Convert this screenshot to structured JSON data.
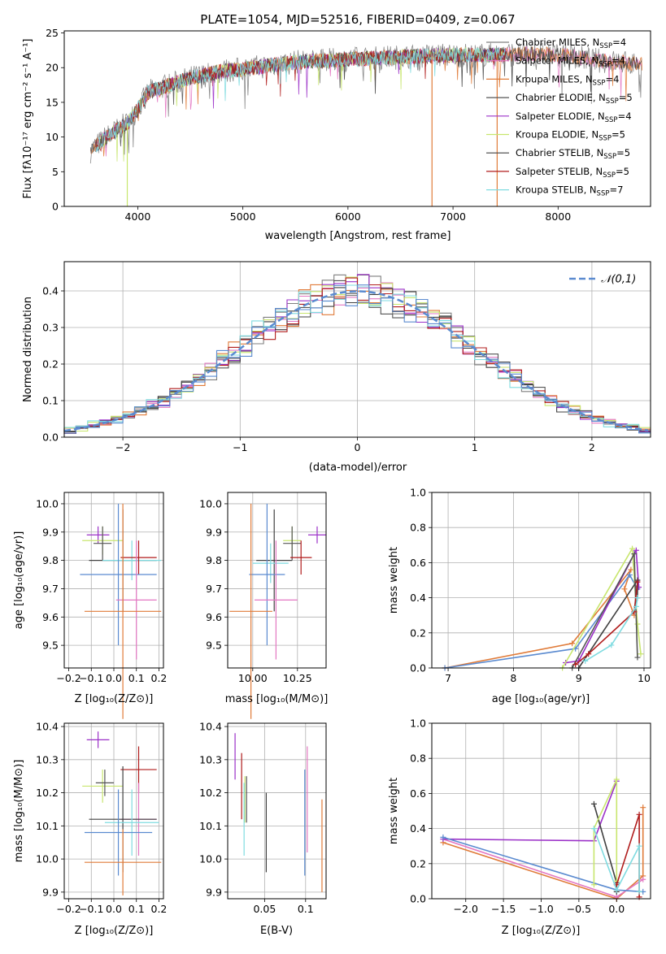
{
  "chart_data": [
    {
      "id": "spectrum",
      "type": "line",
      "title": "PLATE=1054, MJD=52516, FIBERID=0409, z=0.067",
      "xlabel": "wavelength [Angstrom, rest frame]",
      "ylabel": "Flux [fλ10⁻¹⁷ erg cm⁻² s⁻¹ A⁻¹]",
      "xlim": [
        3300,
        8880
      ],
      "ylim": [
        0,
        25.3
      ],
      "xticks": [
        4000,
        5000,
        6000,
        7000,
        8000
      ],
      "yticks": [
        0,
        5,
        10,
        15,
        20,
        25
      ],
      "grid": false,
      "legend_position": "right",
      "legend": [
        {
          "label": "Chabrier MILES, N_SSP=4",
          "color": "#7f7f7f"
        },
        {
          "label": "Salpeter MILES, N_SSP=4",
          "color": "#e377c2"
        },
        {
          "label": "Kroupa MILES, N_SSP=4",
          "color": "#e07b39"
        },
        {
          "label": "Chabrier ELODIE, N_SSP=5",
          "color": "#555555"
        },
        {
          "label": "Salpeter ELODIE, N_SSP=4",
          "color": "#9b30c8"
        },
        {
          "label": "Kroupa ELODIE, N_SSP=5",
          "color": "#c8e66e"
        },
        {
          "label": "Chabrier STELIB, N_SSP=5",
          "color": "#404040"
        },
        {
          "label": "Salpeter STELIB, N_SSP=5",
          "color": "#b01c1c"
        },
        {
          "label": "Kroupa STELIB, N_SSP=7",
          "color": "#7fdbe0"
        }
      ],
      "continuum": {
        "x": [
          3550,
          3700,
          3900,
          4000,
          4100,
          4300,
          4500,
          4800,
          5000,
          5200,
          5500,
          5800,
          6000,
          6300,
          6600,
          6900,
          7200,
          7500,
          7800,
          8100,
          8400,
          8800
        ],
        "y": [
          8,
          10,
          12,
          14,
          16.5,
          17.5,
          18.5,
          19.5,
          19.8,
          20.2,
          20.8,
          21,
          21.2,
          21.4,
          21.6,
          21.8,
          21.8,
          21.9,
          22,
          21.7,
          21,
          20.5
        ]
      },
      "spikes": [
        {
          "x": 3900,
          "y": 0,
          "color": "#c8e66e"
        },
        {
          "x": 6800,
          "y": 0,
          "color": "#e07b39"
        },
        {
          "x": 7420,
          "y": 0,
          "color": "#e07b39"
        }
      ]
    },
    {
      "id": "residuals",
      "type": "step",
      "xlabel": "(data-model)/error",
      "ylabel": "Normed distribution",
      "xlim": [
        -2.5,
        2.5
      ],
      "ylim": [
        0,
        0.48
      ],
      "xticks": [
        -2,
        -1,
        0,
        1,
        2
      ],
      "yticks": [
        0.0,
        0.1,
        0.2,
        0.3,
        0.4
      ],
      "grid": true,
      "legend_position": "top-right",
      "legend": [
        {
          "label": "𝒩(0,1)",
          "color": "#5b8bd0"
        }
      ],
      "bin_width": 0.1
    },
    {
      "id": "age-vs-Z",
      "type": "errorbar",
      "xlabel": "Z [log₁₀(Z/Z⊙)]",
      "ylabel": "age  [log₁₀(age/yr)]",
      "xlim": [
        -0.22,
        0.22
      ],
      "ylim": [
        9.42,
        10.04
      ],
      "xticks": [
        -0.2,
        -0.1,
        0.0,
        0.1,
        0.2
      ],
      "yticks": [
        9.5,
        9.6,
        9.7,
        9.8,
        9.9,
        10.0
      ],
      "points": [
        {
          "x": -0.07,
          "y": 9.89,
          "xerr": 0.05,
          "yerr": 0.03,
          "color": "#9b30c8"
        },
        {
          "x": -0.05,
          "y": 9.87,
          "xerr": 0.09,
          "yerr": 0.05,
          "color": "#c8e66e"
        },
        {
          "x": -0.05,
          "y": 9.86,
          "xerr": 0.04,
          "yerr": 0.06,
          "color": "#555555"
        },
        {
          "x": 0.04,
          "y": 9.8,
          "xerr": 0.15,
          "yerr": 0.18,
          "color": "#404040"
        },
        {
          "x": 0.08,
          "y": 9.8,
          "xerr": 0.13,
          "yerr": 0.07,
          "color": "#7fdbe0"
        },
        {
          "x": 0.11,
          "y": 9.81,
          "xerr": 0.08,
          "yerr": 0.06,
          "color": "#b01c1c"
        },
        {
          "x": 0.02,
          "y": 9.75,
          "xerr": 0.17,
          "yerr": 0.25,
          "color": "#5b8bd0"
        },
        {
          "x": 0.1,
          "y": 9.66,
          "xerr": 0.09,
          "yerr": 0.21,
          "color": "#e377c2"
        },
        {
          "x": 0.04,
          "y": 9.62,
          "xerr": 0.17,
          "yerr": 0.38,
          "color": "#e07b39"
        }
      ]
    },
    {
      "id": "age-vs-mass",
      "type": "errorbar",
      "xlabel": "mass [log₁₀(M/M⊙)]",
      "ylabel": "",
      "xlim": [
        9.86,
        10.41
      ],
      "ylim": [
        9.42,
        10.04
      ],
      "xticks": [
        10.0,
        10.25
      ],
      "yticks": [
        9.5,
        9.6,
        9.7,
        9.8,
        9.9,
        10.0
      ],
      "points": [
        {
          "x": 10.36,
          "y": 9.89,
          "xerr": 0.05,
          "yerr": 0.03,
          "color": "#9b30c8"
        },
        {
          "x": 10.22,
          "y": 9.87,
          "xerr": 0.05,
          "yerr": 0.05,
          "color": "#c8e66e"
        },
        {
          "x": 10.22,
          "y": 9.86,
          "xerr": 0.05,
          "yerr": 0.06,
          "color": "#555555"
        },
        {
          "x": 10.12,
          "y": 9.8,
          "xerr": 0.1,
          "yerr": 0.18,
          "color": "#404040"
        },
        {
          "x": 10.1,
          "y": 9.79,
          "xerr": 0.1,
          "yerr": 0.07,
          "color": "#7fdbe0"
        },
        {
          "x": 10.27,
          "y": 9.81,
          "xerr": 0.06,
          "yerr": 0.06,
          "color": "#b01c1c"
        },
        {
          "x": 10.08,
          "y": 9.75,
          "xerr": 0.1,
          "yerr": 0.25,
          "color": "#5b8bd0"
        },
        {
          "x": 10.13,
          "y": 9.66,
          "xerr": 0.12,
          "yerr": 0.21,
          "color": "#e377c2"
        },
        {
          "x": 9.99,
          "y": 9.62,
          "xerr": 0.12,
          "yerr": 0.38,
          "color": "#e07b39"
        }
      ]
    },
    {
      "id": "weight-vs-age",
      "type": "line",
      "xlabel": "age  [log₁₀(age/yr)]",
      "ylabel": "mass weight",
      "xlim": [
        6.75,
        10.1
      ],
      "ylim": [
        0,
        1.0
      ],
      "xticks": [
        7,
        8,
        9,
        10
      ],
      "yticks": [
        0.0,
        0.2,
        0.4,
        0.6,
        0.8,
        1.0
      ],
      "grid": true,
      "series": [
        {
          "color": "#e07b39",
          "points": [
            [
              6.95,
              0.0
            ],
            [
              8.9,
              0.14
            ],
            [
              9.8,
              0.56
            ],
            [
              9.7,
              0.45
            ],
            [
              9.85,
              0.3
            ]
          ]
        },
        {
          "color": "#5b8bd0",
          "points": [
            [
              6.95,
              0.0
            ],
            [
              8.95,
              0.11
            ],
            [
              9.78,
              0.53
            ],
            [
              9.9,
              0.45
            ]
          ]
        },
        {
          "color": "#9b30c8",
          "points": [
            [
              8.8,
              0.03
            ],
            [
              9.0,
              0.04
            ],
            [
              9.88,
              0.67
            ],
            [
              9.92,
              0.46
            ]
          ]
        },
        {
          "color": "#c8e66e",
          "points": [
            [
              8.75,
              0.0
            ],
            [
              9.82,
              0.68
            ],
            [
              9.9,
              0.25
            ],
            [
              9.95,
              0.08
            ]
          ]
        },
        {
          "color": "#555555",
          "points": [
            [
              8.9,
              0.0
            ],
            [
              9.85,
              0.65
            ],
            [
              9.9,
              0.06
            ]
          ]
        },
        {
          "color": "#404040",
          "points": [
            [
              9.0,
              0.0
            ],
            [
              9.9,
              0.5
            ],
            [
              9.9,
              0.4
            ]
          ]
        },
        {
          "color": "#b01c1c",
          "points": [
            [
              8.95,
              0.02
            ],
            [
              9.15,
              0.08
            ],
            [
              9.85,
              0.32
            ],
            [
              9.9,
              0.49
            ]
          ]
        },
        {
          "color": "#7fdbe0",
          "points": [
            [
              9.1,
              0.04
            ],
            [
              9.5,
              0.13
            ],
            [
              9.88,
              0.35
            ],
            [
              9.9,
              0.4
            ]
          ]
        }
      ]
    },
    {
      "id": "mass-vs-Z",
      "type": "errorbar",
      "xlabel": "Z [log₁₀(Z/Z⊙)]",
      "ylabel": "mass [log₁₀(M/M⊙)]",
      "xlim": [
        -0.22,
        0.22
      ],
      "ylim": [
        9.88,
        10.41
      ],
      "xticks": [
        -0.2,
        -0.1,
        0.0,
        0.1,
        0.2
      ],
      "yticks": [
        9.9,
        10.0,
        10.1,
        10.2,
        10.3,
        10.4
      ],
      "points": [
        {
          "x": -0.07,
          "y": 10.36,
          "xerr": 0.05,
          "yerr": 0.025,
          "color": "#9b30c8"
        },
        {
          "x": 0.11,
          "y": 10.27,
          "xerr": 0.08,
          "yerr": 0.07,
          "color": "#b01c1c"
        },
        {
          "x": -0.05,
          "y": 10.22,
          "xerr": 0.09,
          "yerr": 0.05,
          "color": "#c8e66e"
        },
        {
          "x": -0.04,
          "y": 10.23,
          "xerr": 0.04,
          "yerr": 0.04,
          "color": "#555555"
        },
        {
          "x": 0.11,
          "y": 10.12,
          "xerr": 0.08,
          "yerr": 0.11,
          "color": "#e377c2"
        },
        {
          "x": 0.04,
          "y": 10.12,
          "xerr": 0.15,
          "yerr": 0.16,
          "color": "#404040"
        },
        {
          "x": 0.08,
          "y": 10.11,
          "xerr": 0.12,
          "yerr": 0.1,
          "color": "#7fdbe0"
        },
        {
          "x": 0.02,
          "y": 10.08,
          "xerr": 0.15,
          "yerr": 0.13,
          "color": "#5b8bd0"
        },
        {
          "x": 0.04,
          "y": 9.99,
          "xerr": 0.17,
          "yerr": 0.1,
          "color": "#e07b39"
        }
      ]
    },
    {
      "id": "mass-vs-EBV",
      "type": "errorbar",
      "xlabel": "E(B-V)",
      "ylabel": "",
      "xlim": [
        0.005,
        0.125
      ],
      "ylim": [
        9.88,
        10.41
      ],
      "xticks": [
        0.05,
        0.1
      ],
      "yticks": [
        9.9,
        10.0,
        10.1,
        10.2,
        10.3,
        10.4
      ],
      "points": [
        {
          "x": 0.014,
          "y": 10.31,
          "xerr": 0,
          "yerr": 0.07,
          "color": "#9b30c8"
        },
        {
          "x": 0.022,
          "y": 10.22,
          "xerr": 0,
          "yerr": 0.1,
          "color": "#b01c1c"
        },
        {
          "x": 0.026,
          "y": 10.18,
          "xerr": 0,
          "yerr": 0.07,
          "color": "#c8e66e"
        },
        {
          "x": 0.028,
          "y": 10.18,
          "xerr": 0,
          "yerr": 0.07,
          "color": "#555555"
        },
        {
          "x": 0.025,
          "y": 10.12,
          "xerr": 0,
          "yerr": 0.11,
          "color": "#7fdbe0"
        },
        {
          "x": 0.052,
          "y": 10.08,
          "xerr": 0,
          "yerr": 0.12,
          "color": "#404040"
        },
        {
          "x": 0.099,
          "y": 10.11,
          "xerr": 0,
          "yerr": 0.16,
          "color": "#5b8bd0"
        },
        {
          "x": 0.102,
          "y": 10.18,
          "xerr": 0,
          "yerr": 0.16,
          "color": "#e377c2"
        },
        {
          "x": 0.12,
          "y": 10.04,
          "xerr": 0,
          "yerr": 0.14,
          "color": "#e07b39"
        }
      ]
    },
    {
      "id": "weight-vs-Z",
      "type": "line",
      "xlabel": "Z [log₁₀(Z/Z⊙)]",
      "ylabel": "mass weight",
      "xlim": [
        -2.45,
        0.45
      ],
      "ylim": [
        0,
        1.0
      ],
      "xticks": [
        -2.0,
        -1.5,
        -1.0,
        -0.5,
        0.0
      ],
      "yticks": [
        0.0,
        0.2,
        0.4,
        0.6,
        0.8,
        1.0
      ],
      "grid": true,
      "series": [
        {
          "color": "#e07b39",
          "points": [
            [
              -2.3,
              0.32
            ],
            [
              0.0,
              0.0
            ],
            [
              0.35,
              0.13
            ],
            [
              0.35,
              0.52
            ]
          ]
        },
        {
          "color": "#e377c2",
          "points": [
            [
              -2.3,
              0.34
            ],
            [
              0.0,
              0.01
            ],
            [
              0.35,
              0.11
            ]
          ]
        },
        {
          "color": "#9b30c8",
          "points": [
            [
              -2.3,
              0.34
            ],
            [
              -0.3,
              0.33
            ],
            [
              0.0,
              0.67
            ]
          ]
        },
        {
          "color": "#5b8bd0",
          "points": [
            [
              -2.3,
              0.35
            ],
            [
              0.0,
              0.05
            ],
            [
              0.35,
              0.04
            ]
          ]
        },
        {
          "color": "#404040",
          "points": [
            [
              -0.3,
              0.54
            ],
            [
              0.0,
              0.09
            ],
            [
              0.0,
              0.04
            ]
          ]
        },
        {
          "color": "#c8e66e",
          "points": [
            [
              -0.3,
              0.08
            ],
            [
              -0.3,
              0.4
            ],
            [
              0.0,
              0.68
            ],
            [
              0.0,
              0.1
            ]
          ]
        },
        {
          "color": "#b01c1c",
          "points": [
            [
              0.0,
              0.08
            ],
            [
              0.3,
              0.48
            ],
            [
              0.3,
              0.01
            ]
          ]
        },
        {
          "color": "#7fdbe0",
          "points": [
            [
              -0.3,
              0.4
            ],
            [
              0.0,
              0.05
            ],
            [
              0.3,
              0.3
            ],
            [
              0.3,
              0.04
            ]
          ]
        }
      ]
    }
  ]
}
